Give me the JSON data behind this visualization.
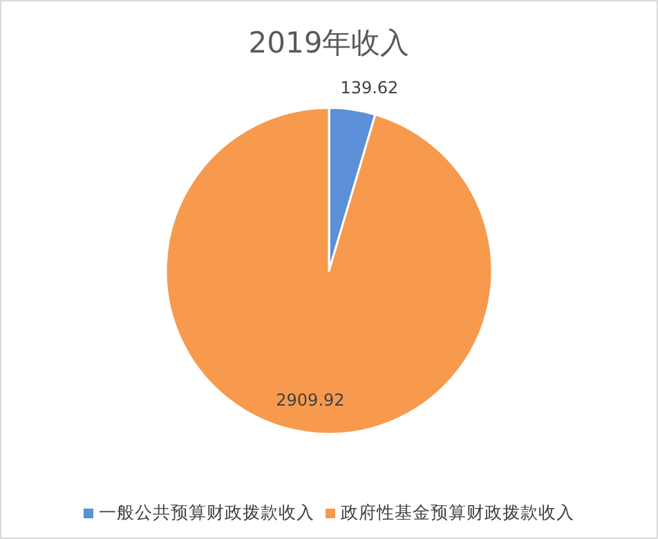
{
  "chart_data": {
    "type": "pie",
    "title": "2019年收入",
    "categories": [
      "一般公共预算财政拨款收入",
      "政府性基金预算财政拨款收入"
    ],
    "values": [
      139.62,
      2909.92
    ],
    "colors": [
      "#5b8fd7",
      "#f79a4d"
    ],
    "data_labels": true,
    "legend": "bottom"
  }
}
